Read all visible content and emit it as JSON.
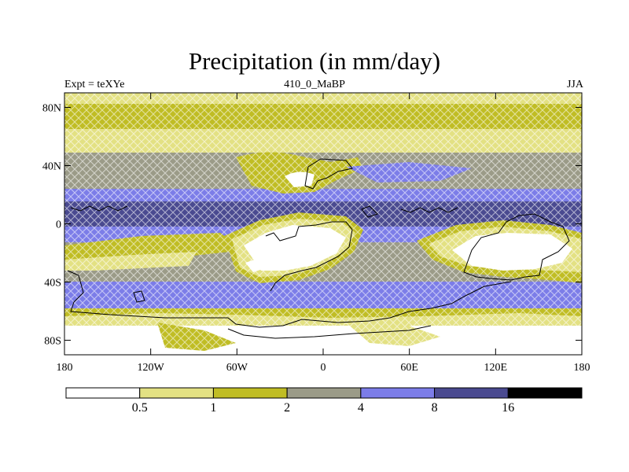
{
  "title": "Precipitation (in mm/day)",
  "left_label": "Expt = teXYe",
  "center_label": "410_0_MaBP",
  "right_label": "JJA",
  "y_ticks": [
    {
      "lat": 80,
      "label": "80N"
    },
    {
      "lat": 40,
      "label": "40N"
    },
    {
      "lat": 0,
      "label": "0"
    },
    {
      "lat": -40,
      "label": "40S"
    },
    {
      "lat": -80,
      "label": "80S"
    }
  ],
  "x_ticks": [
    {
      "lon": -180,
      "label": "180"
    },
    {
      "lon": -120,
      "label": "120W"
    },
    {
      "lon": -60,
      "label": "60W"
    },
    {
      "lon": 0,
      "label": "0"
    },
    {
      "lon": 60,
      "label": "60E"
    },
    {
      "lon": 120,
      "label": "120E"
    },
    {
      "lon": 180,
      "label": "180"
    }
  ],
  "colorbar": {
    "colors": [
      "#ffffff",
      "#e3e183",
      "#c0bd24",
      "#9b9b88",
      "#7c7de8",
      "#4a4a90",
      "#000000"
    ],
    "boundary_labels": [
      "0.5",
      "1",
      "2",
      "4",
      "8",
      "16"
    ]
  },
  "colors": {
    "hatch": "#ffffff",
    "coast": "#000000"
  }
}
